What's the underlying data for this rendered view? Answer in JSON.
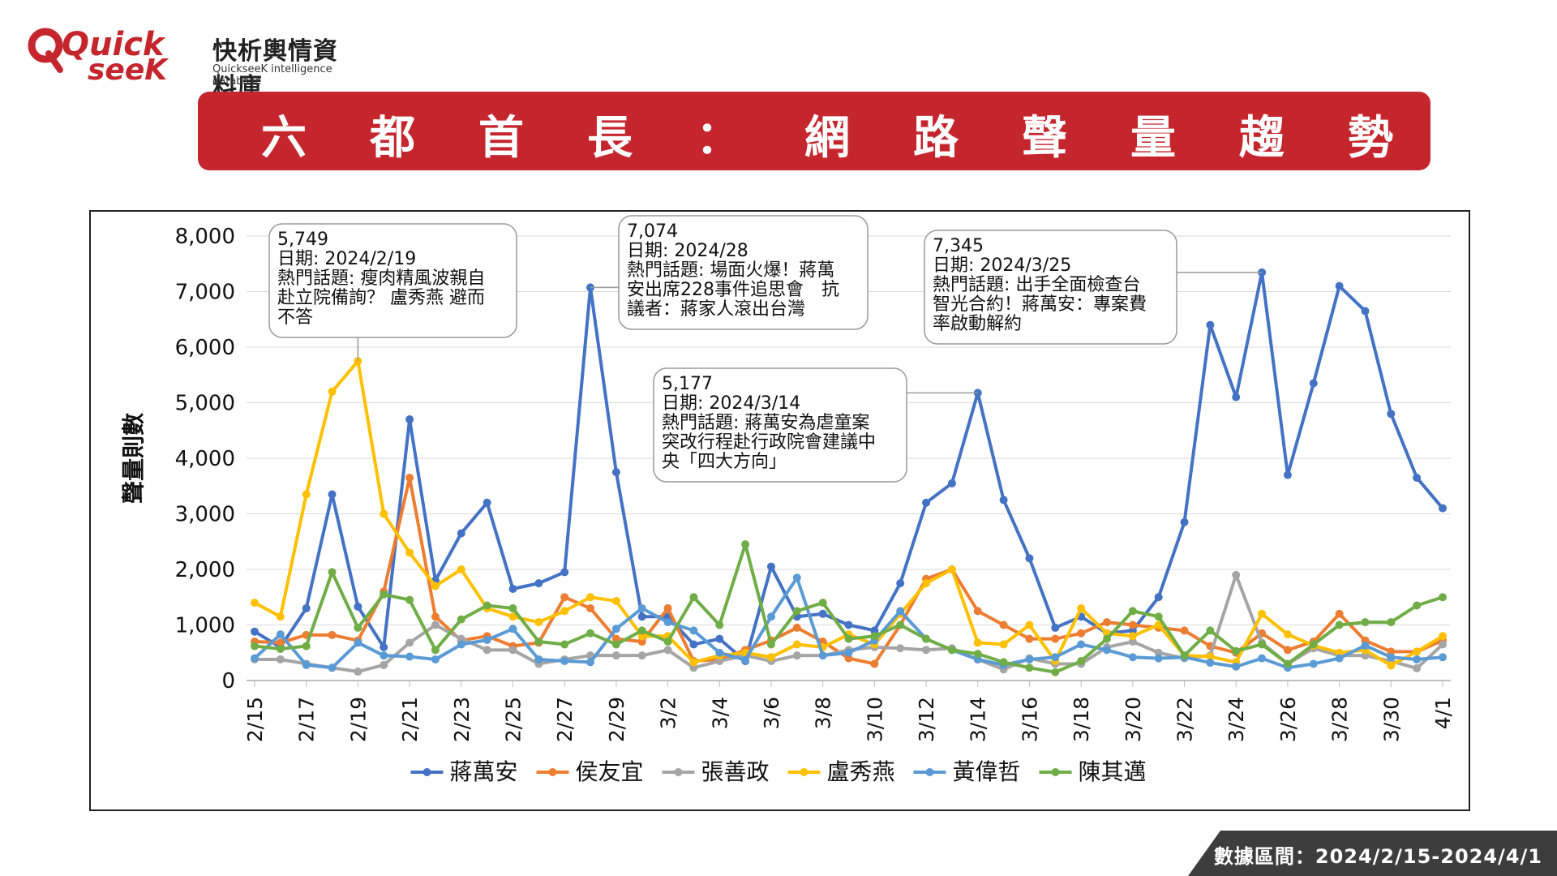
{
  "brand": {
    "logo_word1": "Quick",
    "logo_word2": "seeK",
    "name_cn": "快析輿情資料庫",
    "name_en": "QuickseeK intelligence database",
    "accent": "#c5262d"
  },
  "banner": {
    "title": "六都首長：網路聲量趨勢圖"
  },
  "footer": {
    "range": "數據區間：2024/2/15-2024/4/1"
  },
  "chart_data": {
    "type": "line",
    "title": "",
    "xlabel": "",
    "ylabel": "聲量則數",
    "ylim": [
      0,
      8000
    ],
    "yticks": [
      "0",
      "1,000",
      "2,000",
      "3,000",
      "4,000",
      "5,000",
      "6,000",
      "7,000",
      "8,000"
    ],
    "grid": true,
    "legend_position": "bottom",
    "x": [
      "2/15",
      "2/16",
      "2/17",
      "2/18",
      "2/19",
      "2/20",
      "2/21",
      "2/22",
      "2/23",
      "2/24",
      "2/25",
      "2/26",
      "2/27",
      "2/28",
      "2/29",
      "3/1",
      "3/2",
      "3/3",
      "3/4",
      "3/5",
      "3/6",
      "3/7",
      "3/8",
      "3/9",
      "3/10",
      "3/11",
      "3/12",
      "3/13",
      "3/14",
      "3/15",
      "3/16",
      "3/17",
      "3/18",
      "3/19",
      "3/20",
      "3/21",
      "3/22",
      "3/23",
      "3/24",
      "3/25",
      "3/26",
      "3/27",
      "3/28",
      "3/29",
      "3/30",
      "3/31",
      "4/1"
    ],
    "xtick_labels": [
      "2/15",
      "2/17",
      "2/19",
      "2/21",
      "2/23",
      "2/25",
      "2/27",
      "2/29",
      "3/2",
      "3/4",
      "3/6",
      "3/8",
      "3/10",
      "3/12",
      "3/14",
      "3/16",
      "3/18",
      "3/20",
      "3/22",
      "3/24",
      "3/26",
      "3/28",
      "3/30",
      "4/1"
    ],
    "series": [
      {
        "name": "蔣萬安",
        "color": "#4472c4",
        "values": [
          880,
          600,
          1300,
          3350,
          1330,
          600,
          4700,
          1800,
          2650,
          3200,
          1650,
          1750,
          1950,
          7074,
          3750,
          1150,
          1150,
          650,
          750,
          350,
          2050,
          1150,
          1200,
          1000,
          900,
          1750,
          3200,
          3550,
          5177,
          3250,
          2200,
          950,
          1150,
          850,
          900,
          1500,
          2850,
          6400,
          5100,
          7345,
          3700,
          5350,
          7100,
          6650,
          4800,
          3650,
          3100
        ]
      },
      {
        "name": "侯友宜",
        "color": "#ed7d31",
        "values": [
          700,
          680,
          820,
          820,
          720,
          1600,
          3650,
          1150,
          720,
          800,
          620,
          680,
          1500,
          1300,
          750,
          700,
          1300,
          350,
          380,
          550,
          720,
          950,
          700,
          400,
          300,
          1000,
          1830,
          2000,
          1250,
          1000,
          750,
          750,
          850,
          1050,
          1000,
          950,
          900,
          620,
          500,
          850,
          550,
          700,
          1200,
          720,
          520,
          520,
          720
        ]
      },
      {
        "name": "張善政",
        "color": "#a5a5a5",
        "values": [
          380,
          380,
          300,
          230,
          160,
          280,
          680,
          1000,
          750,
          550,
          550,
          300,
          380,
          450,
          450,
          450,
          550,
          230,
          350,
          450,
          350,
          450,
          450,
          550,
          600,
          580,
          550,
          580,
          380,
          200,
          400,
          300,
          300,
          600,
          700,
          500,
          400,
          450,
          1900,
          680,
          300,
          580,
          450,
          450,
          350,
          220,
          650
        ]
      },
      {
        "name": "盧秀燕",
        "color": "#ffc000",
        "values": [
          1400,
          1150,
          3350,
          5200,
          5749,
          3000,
          2300,
          1700,
          2000,
          1300,
          1150,
          1050,
          1250,
          1500,
          1430,
          800,
          800,
          330,
          450,
          500,
          420,
          650,
          600,
          830,
          650,
          1200,
          1750,
          2000,
          680,
          650,
          1000,
          350,
          1300,
          850,
          800,
          1000,
          450,
          430,
          330,
          1200,
          830,
          630,
          500,
          550,
          270,
          520,
          800
        ]
      },
      {
        "name": "黃偉哲",
        "color": "#5b9bd5",
        "values": [
          400,
          830,
          280,
          230,
          680,
          450,
          430,
          380,
          650,
          730,
          930,
          380,
          350,
          330,
          930,
          1300,
          1050,
          900,
          500,
          370,
          1150,
          1850,
          450,
          500,
          720,
          1250,
          750,
          550,
          380,
          280,
          380,
          420,
          650,
          550,
          420,
          400,
          420,
          320,
          250,
          400,
          230,
          300,
          400,
          630,
          420,
          380,
          420
        ]
      },
      {
        "name": "陳其邁",
        "color": "#70ad47",
        "values": [
          620,
          570,
          620,
          1950,
          950,
          1550,
          1450,
          550,
          1100,
          1350,
          1300,
          700,
          650,
          850,
          650,
          900,
          700,
          1500,
          1000,
          2450,
          650,
          1250,
          1400,
          750,
          800,
          1000,
          750,
          550,
          480,
          330,
          230,
          150,
          350,
          750,
          1250,
          1150,
          450,
          900,
          530,
          650,
          300,
          650,
          1000,
          1050,
          1050,
          1350,
          1500
        ]
      }
    ],
    "annotations": [
      {
        "series": "盧秀燕",
        "x": "2/19",
        "value": "5,749",
        "date": "日期: 2024/2/19",
        "lines": [
          "熱門話題: 瘦肉精風波親自",
          "赴立院備詢？ 盧秀燕 避而",
          "不答"
        ]
      },
      {
        "series": "蔣萬安",
        "x": "2/28",
        "value": "7,074",
        "date": "日期: 2024/28",
        "lines": [
          "熱門話題: 場面火爆！蔣萬",
          "安出席228事件追思會　抗",
          "議者：蔣家人滾出台灣"
        ]
      },
      {
        "series": "蔣萬安",
        "x": "3/14",
        "value": "5,177",
        "date": "日期: 2024/3/14",
        "lines": [
          "熱門話題: 蔣萬安為虐童案",
          "突改行程赴行政院會建議中",
          "央「四大方向」"
        ]
      },
      {
        "series": "蔣萬安",
        "x": "3/25",
        "value": "7,345",
        "date": "日期: 2024/3/25",
        "lines": [
          "熱門話題: 出手全面檢查台",
          "智光合約！蔣萬安：專案費",
          "率啟動解約"
        ]
      }
    ]
  }
}
